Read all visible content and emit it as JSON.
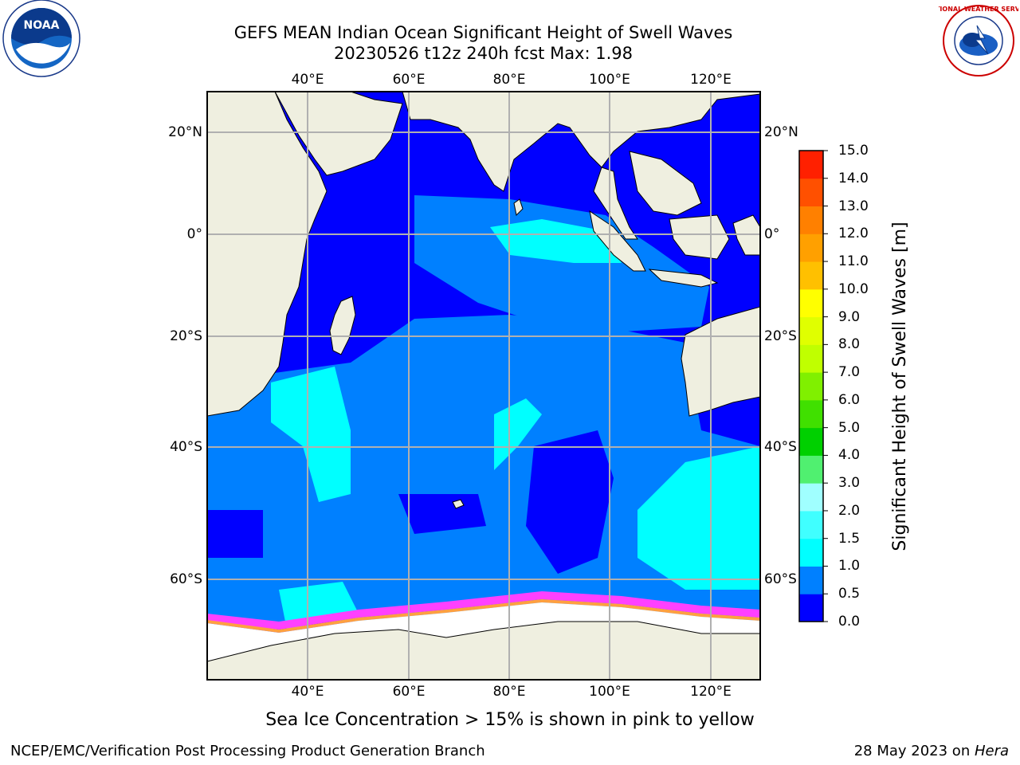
{
  "title": {
    "line1": "GEFS MEAN Indian Ocean Significant Height of Swell Waves",
    "line2": "20230526 t12z 240h fcst   Max: 1.98"
  },
  "logos": {
    "left_text": "NOAA",
    "right_text": "NATIONAL WEATHER SERVICE"
  },
  "axes": {
    "lon_ticks": [
      "40°E",
      "60°E",
      "80°E",
      "100°E",
      "120°E"
    ],
    "lat_ticks_left": [
      "20°N",
      "0°",
      "20°S",
      "40°S",
      "60°S"
    ],
    "lat_ticks_right": [
      "20°N",
      "0°",
      "20°S",
      "40°S",
      "60°S"
    ]
  },
  "colorbar": {
    "label": "Significant Height of Swell Waves [m]",
    "ticks": [
      "0.0",
      "0.5",
      "1.0",
      "1.5",
      "2.0",
      "3.0",
      "4.0",
      "5.0",
      "6.0",
      "7.0",
      "8.0",
      "9.0",
      "10.0",
      "11.0",
      "12.0",
      "13.0",
      "14.0",
      "15.0"
    ],
    "colors": [
      "#0000ff",
      "#0080ff",
      "#00ffff",
      "#40ffff",
      "#a0ffff",
      "#50f070",
      "#00d000",
      "#40e000",
      "#80f000",
      "#c0ff00",
      "#e0ff00",
      "#ffff00",
      "#ffc000",
      "#ffa000",
      "#ff8000",
      "#ff5000",
      "#ff2000"
    ]
  },
  "caption": "Sea Ice Concentration > 15% is shown in pink to yellow",
  "footer": {
    "left": "NCEP/EMC/Verification Post Processing Product Generation Branch",
    "right_date": "28 May 2023 on ",
    "right_host": "Hera"
  }
}
